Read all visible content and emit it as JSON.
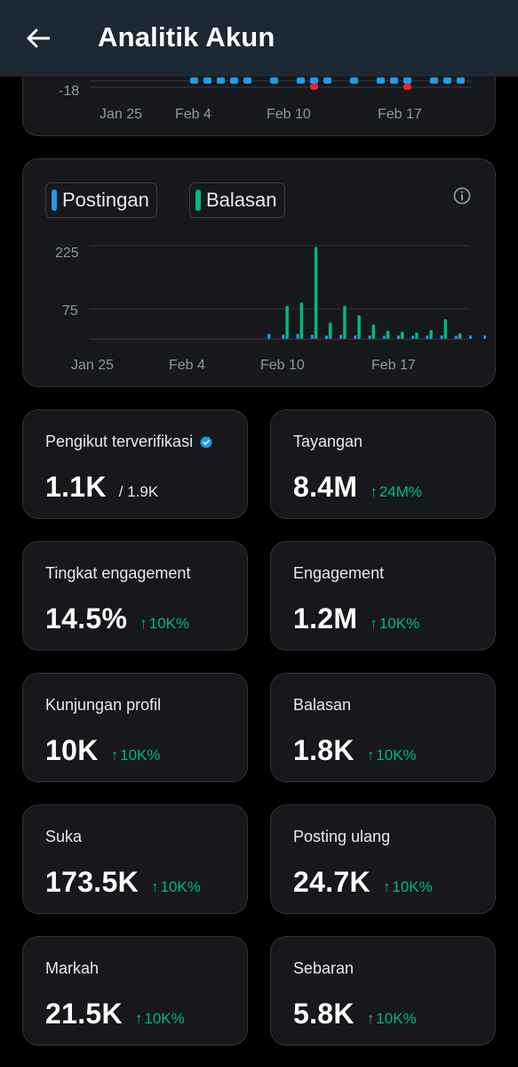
{
  "header": {
    "title": "Analitik Akun",
    "back_icon": "arrow-left-icon"
  },
  "colors": {
    "postingan": "#1d9bf0",
    "balasan": "#00ba7c",
    "negative": "#f4212e",
    "positive_change": "#00ba7c"
  },
  "top_chart": {
    "chart_data": {
      "type": "bar",
      "ytick": "-18",
      "xticks": [
        "Jan 25",
        "Feb 4",
        "Feb 10",
        "Feb 17"
      ]
    }
  },
  "activity_chart": {
    "legend": [
      {
        "label": "Postingan",
        "color": "#1d9bf0"
      },
      {
        "label": "Balasan",
        "color": "#00ba7c"
      }
    ],
    "chart_data": {
      "type": "bar",
      "yticks": [
        "225",
        "75"
      ],
      "xticks": [
        "Jan 25",
        "Feb 4",
        "Feb 10",
        "Feb 17"
      ],
      "ylim": [
        0,
        240
      ],
      "series": [
        {
          "name": "Postingan",
          "values": [
            0,
            0,
            0,
            0,
            0,
            0,
            0,
            0,
            0,
            0,
            0,
            0,
            0,
            0,
            0,
            0,
            0,
            0,
            0,
            0,
            0,
            0,
            0,
            0,
            0,
            0,
            0,
            0,
            0,
            0,
            0,
            0,
            0,
            0,
            0,
            0,
            0,
            0,
            0,
            0,
            0,
            0,
            0,
            0,
            0,
            0,
            0,
            0,
            0,
            0,
            0,
            0,
            0,
            0,
            0,
            0,
            0,
            0,
            0,
            0,
            0
          ]
        },
        {
          "name": "Balasan",
          "values": []
        }
      ]
    }
  },
  "stats": [
    {
      "label": "Pengikut terverifikasi",
      "value": "1.1K",
      "sub": "/ 1.9K",
      "verified": true
    },
    {
      "label": "Tayangan",
      "value": "8.4M",
      "change": "24M%"
    },
    {
      "label": "Tingkat engagement",
      "value": "14.5%",
      "change": "10K%"
    },
    {
      "label": "Engagement",
      "value": "1.2M",
      "change": "10K%"
    },
    {
      "label": "Kunjungan profil",
      "value": "10K",
      "change": "10K%"
    },
    {
      "label": "Balasan",
      "value": "1.8K",
      "change": "10K%"
    },
    {
      "label": "Suka",
      "value": "173.5K",
      "change": "10K%"
    },
    {
      "label": "Posting ulang",
      "value": "24.7K",
      "change": "10K%"
    },
    {
      "label": "Markah",
      "value": "21.5K",
      "change": "10K%"
    },
    {
      "label": "Sebaran",
      "value": "5.8K",
      "change": "10K%"
    }
  ]
}
